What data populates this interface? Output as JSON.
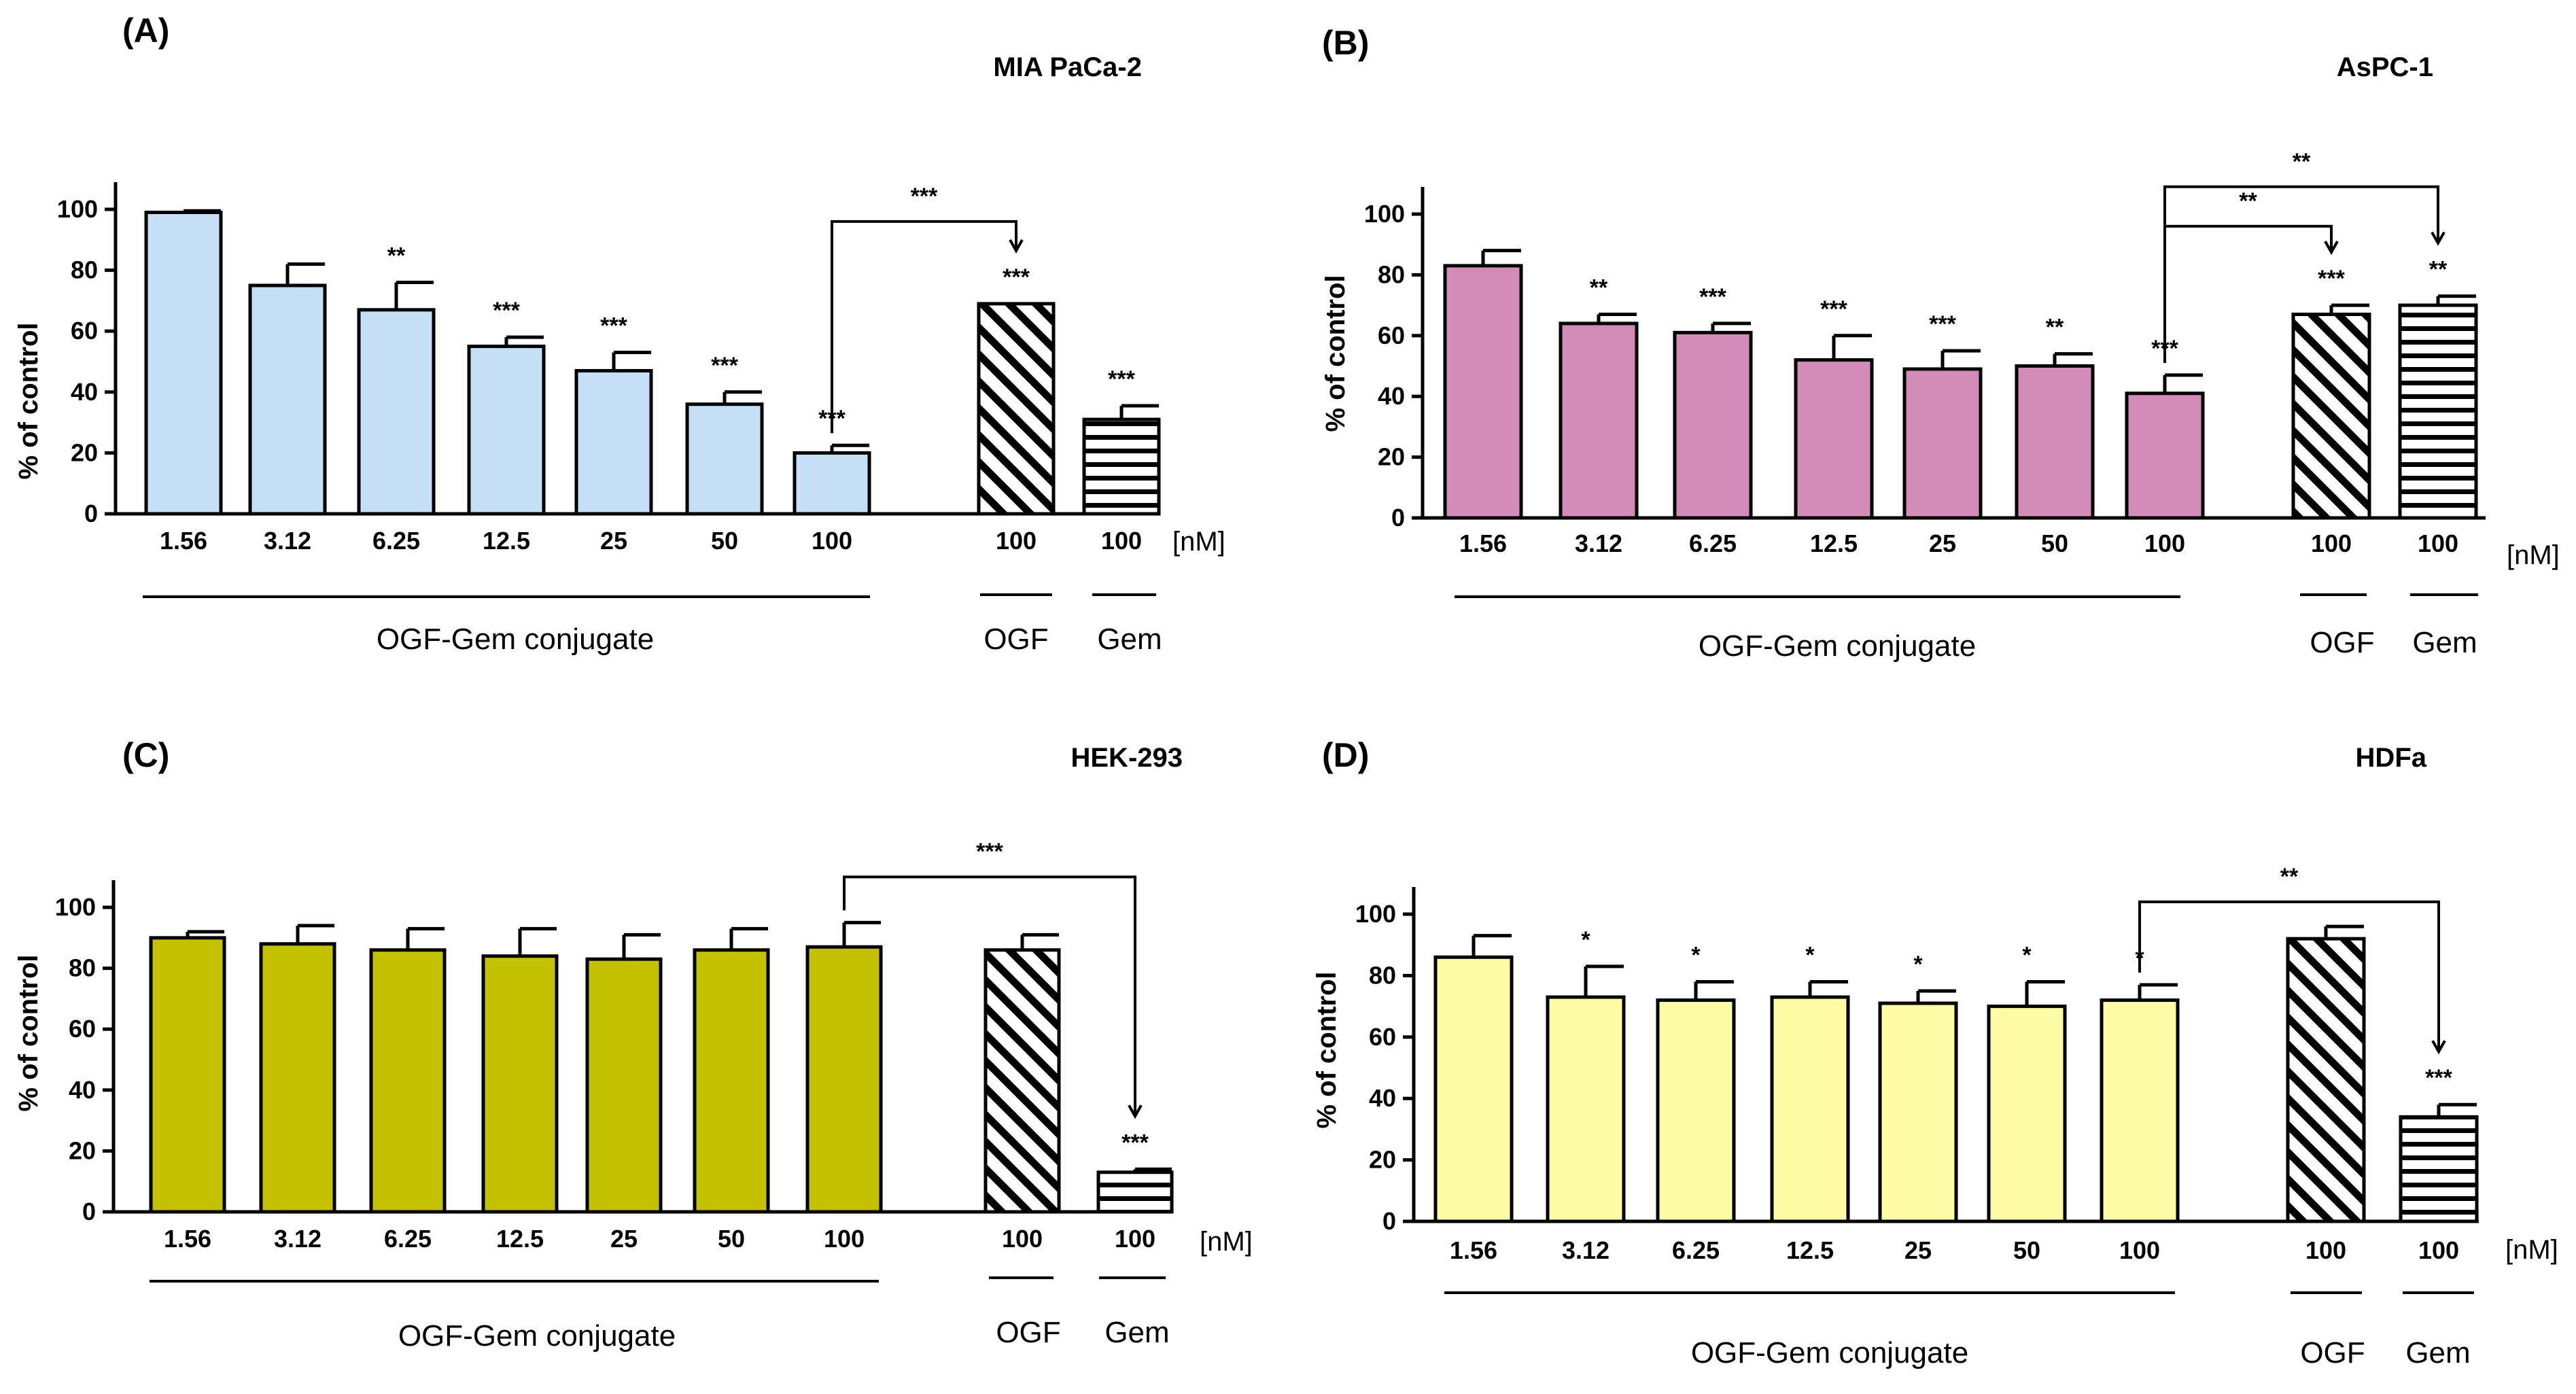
{
  "chart_data": [
    {
      "type": "bar",
      "panel": "(A)",
      "title": "MIA PaCa-2",
      "ylabel": "% of control",
      "ylim": [
        0,
        100
      ],
      "yticks": [
        0,
        20,
        40,
        60,
        80,
        100
      ],
      "fill": "#c5dff7",
      "unit_label": "[nM]",
      "conjugate_label": "OGF-Gem conjugate",
      "ogf_label": "OGF",
      "gem_label": "Gem",
      "bars": [
        {
          "label": "1.56",
          "group": "conjugate",
          "value": 99,
          "error": 0.5,
          "sig": ""
        },
        {
          "label": "3.12",
          "group": "conjugate",
          "value": 75,
          "error": 7,
          "sig": ""
        },
        {
          "label": "6.25",
          "group": "conjugate",
          "value": 67,
          "error": 9,
          "sig": "**"
        },
        {
          "label": "12.5",
          "group": "conjugate",
          "value": 55,
          "error": 3,
          "sig": "***"
        },
        {
          "label": "25",
          "group": "conjugate",
          "value": 47,
          "error": 6,
          "sig": "***"
        },
        {
          "label": "50",
          "group": "conjugate",
          "value": 36,
          "error": 4,
          "sig": "***"
        },
        {
          "label": "100",
          "group": "conjugate",
          "value": 20,
          "error": 2.5,
          "sig": "***"
        },
        {
          "label": "100",
          "group": "OGF",
          "value": 69,
          "error": 0,
          "sig": "***"
        },
        {
          "label": "100",
          "group": "Gem",
          "value": 31,
          "error": 4.5,
          "sig": "***"
        }
      ],
      "brackets": [
        {
          "from": 6,
          "to": 7,
          "height": 96,
          "label": "***"
        }
      ]
    },
    {
      "type": "bar",
      "panel": "(B)",
      "title": "AsPC-1",
      "ylabel": "% of control",
      "ylim": [
        0,
        100
      ],
      "yticks": [
        0,
        20,
        40,
        60,
        80,
        100
      ],
      "fill": "#d38cb8",
      "unit_label": "[nM]",
      "conjugate_label": "OGF-Gem conjugate",
      "ogf_label": "OGF",
      "gem_label": "Gem",
      "bars": [
        {
          "label": "1.56",
          "group": "conjugate",
          "value": 83,
          "error": 5,
          "sig": ""
        },
        {
          "label": "3.12",
          "group": "conjugate",
          "value": 64,
          "error": 3,
          "sig": "**"
        },
        {
          "label": "6.25",
          "group": "conjugate",
          "value": 61,
          "error": 3,
          "sig": "***"
        },
        {
          "label": "12.5",
          "group": "conjugate",
          "value": 52,
          "error": 8,
          "sig": "***"
        },
        {
          "label": "25",
          "group": "conjugate",
          "value": 49,
          "error": 6,
          "sig": "***"
        },
        {
          "label": "50",
          "group": "conjugate",
          "value": 50,
          "error": 4,
          "sig": "**"
        },
        {
          "label": "100",
          "group": "conjugate",
          "value": 41,
          "error": 6,
          "sig": "***"
        },
        {
          "label": "100",
          "group": "OGF",
          "value": 67,
          "error": 3,
          "sig": "***"
        },
        {
          "label": "100",
          "group": "Gem",
          "value": 70,
          "error": 3,
          "sig": "**"
        }
      ],
      "brackets": [
        {
          "from": 6,
          "to": 7,
          "height": 96,
          "label": "**"
        },
        {
          "from": 6,
          "to": 8,
          "height": 109,
          "label": "**"
        }
      ]
    },
    {
      "type": "bar",
      "panel": "(C)",
      "title": "HEK-293",
      "ylabel": "% of control",
      "ylim": [
        0,
        100
      ],
      "yticks": [
        0,
        20,
        40,
        60,
        80,
        100
      ],
      "fill": "#c4c101",
      "unit_label": "[nM]",
      "conjugate_label": "OGF-Gem conjugate",
      "ogf_label": "OGF",
      "gem_label": "Gem",
      "bars": [
        {
          "label": "1.56",
          "group": "conjugate",
          "value": 90,
          "error": 2,
          "sig": ""
        },
        {
          "label": "3.12",
          "group": "conjugate",
          "value": 88,
          "error": 6,
          "sig": ""
        },
        {
          "label": "6.25",
          "group": "conjugate",
          "value": 86,
          "error": 7,
          "sig": ""
        },
        {
          "label": "12.5",
          "group": "conjugate",
          "value": 84,
          "error": 9,
          "sig": ""
        },
        {
          "label": "25",
          "group": "conjugate",
          "value": 83,
          "error": 8,
          "sig": ""
        },
        {
          "label": "50",
          "group": "conjugate",
          "value": 86,
          "error": 7,
          "sig": ""
        },
        {
          "label": "100",
          "group": "conjugate",
          "value": 87,
          "error": 8,
          "sig": ""
        },
        {
          "label": "100",
          "group": "OGF",
          "value": 86,
          "error": 5,
          "sig": ""
        },
        {
          "label": "100",
          "group": "Gem",
          "value": 13,
          "error": 1,
          "sig": "***"
        }
      ],
      "brackets": [
        {
          "from": 6,
          "to": 8,
          "height": 110,
          "label": "***"
        }
      ]
    },
    {
      "type": "bar",
      "panel": "(D)",
      "title": "HDFa",
      "ylabel": "% of control",
      "ylim": [
        0,
        100
      ],
      "yticks": [
        0,
        20,
        40,
        60,
        80,
        100
      ],
      "fill": "#fdfba3",
      "unit_label": "[nM]",
      "conjugate_label": "OGF-Gem conjugate",
      "ogf_label": "OGF",
      "gem_label": "Gem",
      "bars": [
        {
          "label": "1.56",
          "group": "conjugate",
          "value": 86,
          "error": 7,
          "sig": ""
        },
        {
          "label": "3.12",
          "group": "conjugate",
          "value": 73,
          "error": 10,
          "sig": "*"
        },
        {
          "label": "6.25",
          "group": "conjugate",
          "value": 72,
          "error": 6,
          "sig": "*"
        },
        {
          "label": "12.5",
          "group": "conjugate",
          "value": 73,
          "error": 5,
          "sig": "*"
        },
        {
          "label": "25",
          "group": "conjugate",
          "value": 71,
          "error": 4,
          "sig": "*"
        },
        {
          "label": "50",
          "group": "conjugate",
          "value": 70,
          "error": 8,
          "sig": "*"
        },
        {
          "label": "100",
          "group": "conjugate",
          "value": 72,
          "error": 5,
          "sig": "*"
        },
        {
          "label": "100",
          "group": "OGF",
          "value": 92,
          "error": 4,
          "sig": ""
        },
        {
          "label": "100",
          "group": "Gem",
          "value": 34,
          "error": 4,
          "sig": "***"
        }
      ],
      "brackets": [
        {
          "from": 6,
          "to": 8,
          "height": 104,
          "label": "**"
        }
      ]
    }
  ]
}
